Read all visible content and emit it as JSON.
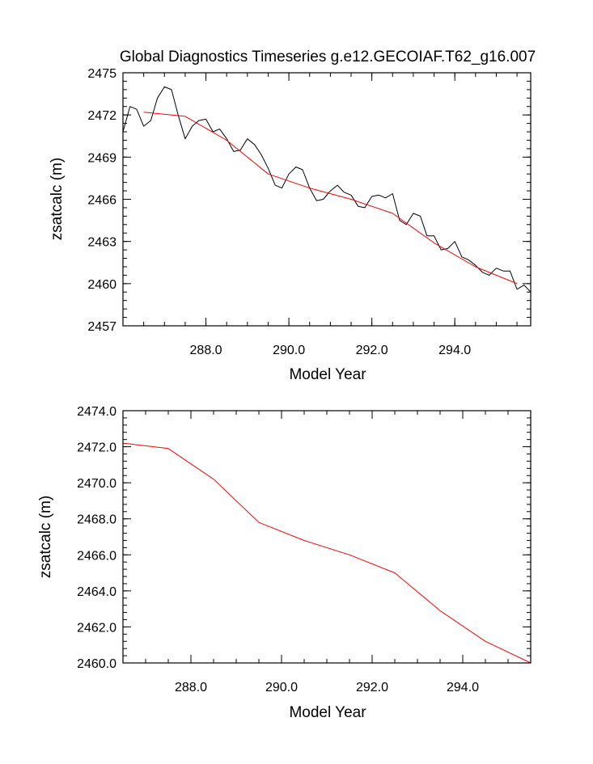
{
  "title": "Global Diagnostics Timeseries g.e12.GECOIAF.T62_g16.007",
  "chart_data": [
    {
      "type": "line",
      "xlabel": "Model Year",
      "ylabel": "zsatcalc (m)",
      "xlim": [
        286.0,
        295.83
      ],
      "ylim": [
        2457,
        2475
      ],
      "x_ticks": [
        288.0,
        290.0,
        292.0,
        294.0
      ],
      "x_tick_labels": [
        "288.0",
        "290.0",
        "292.0",
        "294.0"
      ],
      "y_ticks": [
        2457,
        2460,
        2463,
        2466,
        2469,
        2472,
        2475
      ],
      "y_tick_labels": [
        "2457",
        "2460",
        "2463",
        "2466",
        "2469",
        "2472",
        "2475"
      ],
      "grid": false,
      "legend": "none",
      "series": [
        {
          "color": "#000000",
          "x": [
            286.0,
            286.17,
            286.33,
            286.5,
            286.67,
            286.83,
            287.0,
            287.17,
            287.33,
            287.5,
            287.67,
            287.83,
            288.0,
            288.17,
            288.33,
            288.5,
            288.67,
            288.83,
            289.0,
            289.17,
            289.33,
            289.5,
            289.67,
            289.83,
            290.0,
            290.17,
            290.33,
            290.5,
            290.67,
            290.83,
            291.0,
            291.17,
            291.33,
            291.5,
            291.67,
            291.83,
            292.0,
            292.17,
            292.33,
            292.5,
            292.67,
            292.83,
            293.0,
            293.17,
            293.33,
            293.5,
            293.67,
            293.83,
            294.0,
            294.17,
            294.33,
            294.5,
            294.67,
            294.83,
            295.0,
            295.17,
            295.33,
            295.5,
            295.67,
            295.83
          ],
          "values": [
            2470.8,
            2472.6,
            2472.4,
            2471.2,
            2471.6,
            2473.2,
            2474.0,
            2473.8,
            2472.0,
            2470.3,
            2471.2,
            2471.6,
            2471.7,
            2470.8,
            2471.0,
            2470.3,
            2469.4,
            2469.5,
            2470.3,
            2469.9,
            2469.2,
            2468.2,
            2467.0,
            2466.8,
            2467.8,
            2468.3,
            2468.1,
            2466.8,
            2465.9,
            2466.0,
            2466.6,
            2467.0,
            2466.5,
            2466.3,
            2465.5,
            2465.4,
            2466.2,
            2466.3,
            2466.1,
            2466.4,
            2464.5,
            2464.2,
            2465.0,
            2464.8,
            2463.4,
            2463.4,
            2462.4,
            2462.5,
            2463.0,
            2461.9,
            2461.7,
            2461.3,
            2460.8,
            2460.6,
            2461.1,
            2460.9,
            2460.9,
            2459.6,
            2459.9,
            2459.4
          ]
        },
        {
          "color": "#ff0000",
          "x": [
            286.5,
            287.5,
            288.5,
            289.5,
            290.5,
            291.5,
            292.5,
            293.5,
            294.5,
            295.5
          ],
          "values": [
            2472.2,
            2471.9,
            2470.2,
            2467.8,
            2466.8,
            2466.0,
            2465.0,
            2462.9,
            2461.2,
            2460.0
          ]
        }
      ]
    },
    {
      "type": "line",
      "xlabel": "Model Year",
      "ylabel": "zsatcalc (m)",
      "xlim": [
        286.5,
        295.5
      ],
      "ylim": [
        2460.0,
        2474.0
      ],
      "x_ticks": [
        288.0,
        290.0,
        292.0,
        294.0
      ],
      "x_tick_labels": [
        "288.0",
        "290.0",
        "292.0",
        "294.0"
      ],
      "y_ticks": [
        2460.0,
        2462.0,
        2464.0,
        2466.0,
        2468.0,
        2470.0,
        2472.0,
        2474.0
      ],
      "y_tick_labels": [
        "2460.0",
        "2462.0",
        "2464.0",
        "2466.0",
        "2468.0",
        "2470.0",
        "2472.0",
        "2474.0"
      ],
      "grid": false,
      "legend": "none",
      "series": [
        {
          "color": "#ff0000",
          "x": [
            286.5,
            287.5,
            288.5,
            289.5,
            290.5,
            291.5,
            292.5,
            293.5,
            294.5,
            295.5
          ],
          "values": [
            2472.2,
            2471.9,
            2470.2,
            2467.8,
            2466.8,
            2466.0,
            2465.0,
            2462.9,
            2461.2,
            2460.0
          ]
        }
      ]
    }
  ]
}
